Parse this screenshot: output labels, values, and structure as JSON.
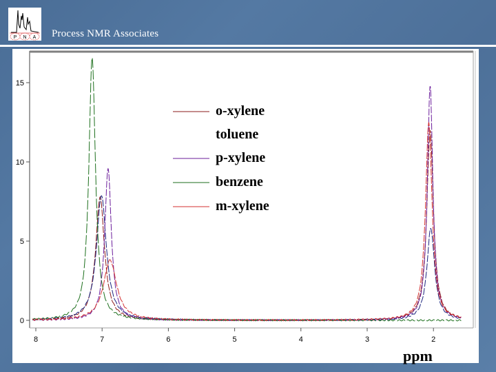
{
  "header": {
    "title": "Process NMR Associates",
    "logo_letters": [
      "P",
      "N",
      "A"
    ]
  },
  "legend": {
    "items": [
      {
        "label": "o-xylene",
        "color": "#8b1a1a"
      },
      {
        "label": "toluene",
        "color": null
      },
      {
        "label": "p-xylene",
        "color": "#6a1b9a"
      },
      {
        "label": "benzene",
        "color": "#1b6e1b"
      },
      {
        "label": "m-xylene",
        "color": "#d32f2f"
      }
    ]
  },
  "axis": {
    "xlabel": "ppm",
    "x_ticks": [
      "8",
      "7",
      "6",
      "5",
      "4",
      "3",
      "2"
    ],
    "y_ticks": [
      "0",
      "5",
      "10",
      "15"
    ]
  },
  "chart_data": {
    "type": "line",
    "title": "",
    "xlabel": "ppm",
    "ylabel": "",
    "xlim": [
      8.05,
      1.55
    ],
    "ylim": [
      -0.5,
      17.5
    ],
    "x_reversed": true,
    "grid": false,
    "legend_position": "upper center",
    "x_ticks": [
      8,
      7,
      6,
      5,
      4,
      3,
      2
    ],
    "y_ticks": [
      0,
      5,
      10,
      15
    ],
    "series": [
      {
        "name": "o-xylene",
        "color": "#8b1a1a",
        "peaks": [
          {
            "ppm": 7.03,
            "height": 7.8,
            "width": 0.08
          },
          {
            "ppm": 2.05,
            "height": 12.0,
            "width": 0.06
          }
        ]
      },
      {
        "name": "toluene",
        "color": "#1a237e",
        "peaks": [
          {
            "ppm": 7.01,
            "height": 7.9,
            "width": 0.09
          },
          {
            "ppm": 2.04,
            "height": 5.8,
            "width": 0.07
          }
        ]
      },
      {
        "name": "p-xylene",
        "color": "#6a1b9a",
        "peaks": [
          {
            "ppm": 6.91,
            "height": 9.6,
            "width": 0.06
          },
          {
            "ppm": 2.05,
            "height": 14.8,
            "width": 0.05
          }
        ]
      },
      {
        "name": "benzene",
        "color": "#1b6e1b",
        "peaks": [
          {
            "ppm": 7.15,
            "height": 16.6,
            "width": 0.06
          }
        ]
      },
      {
        "name": "m-xylene",
        "color": "#d32f2f",
        "peaks": [
          {
            "ppm": 6.88,
            "height": 3.8,
            "width": 0.12
          },
          {
            "ppm": 2.07,
            "height": 12.5,
            "width": 0.06
          }
        ]
      }
    ]
  }
}
